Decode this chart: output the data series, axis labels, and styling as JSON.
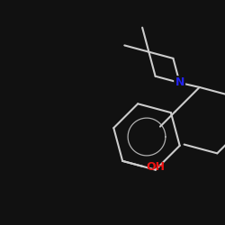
{
  "background_color": "#111111",
  "bond_color": "#cccccc",
  "N_color": "#2222ee",
  "O_color": "#ee1111",
  "label_N": "N",
  "label_OH": "OH",
  "figsize": [
    2.5,
    2.5
  ],
  "dpi": 100,
  "lw": 1.5
}
